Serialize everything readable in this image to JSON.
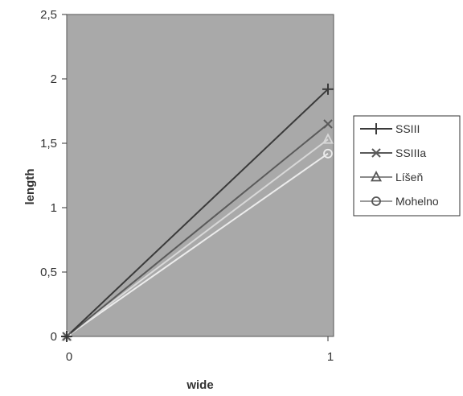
{
  "chart_data": {
    "type": "line",
    "xlabel": "wide",
    "ylabel": "length",
    "x": [
      0,
      1
    ],
    "x_tick_labels": [
      "0",
      "1"
    ],
    "ylim": [
      0,
      2.5
    ],
    "y_ticks": [
      0,
      0.5,
      1,
      1.5,
      2,
      2.5
    ],
    "y_tick_labels": [
      "0",
      "0,5",
      "1",
      "1,5",
      "2",
      "2,5"
    ],
    "grid": false,
    "plot_background": "#a9a9a9",
    "legend_position": "right",
    "series": [
      {
        "name": "SSIII",
        "values": [
          0,
          1.92
        ],
        "marker": "plus",
        "color": "#3a3a3a"
      },
      {
        "name": "SSIIIa",
        "values": [
          0,
          1.65
        ],
        "marker": "x",
        "color": "#5a5a5a"
      },
      {
        "name": "Líšeň",
        "values": [
          0,
          1.53
        ],
        "marker": "triangle",
        "color": "#d8d8d8"
      },
      {
        "name": "Mohelno",
        "values": [
          0,
          1.42
        ],
        "marker": "circle",
        "color": "#ececec"
      }
    ]
  }
}
